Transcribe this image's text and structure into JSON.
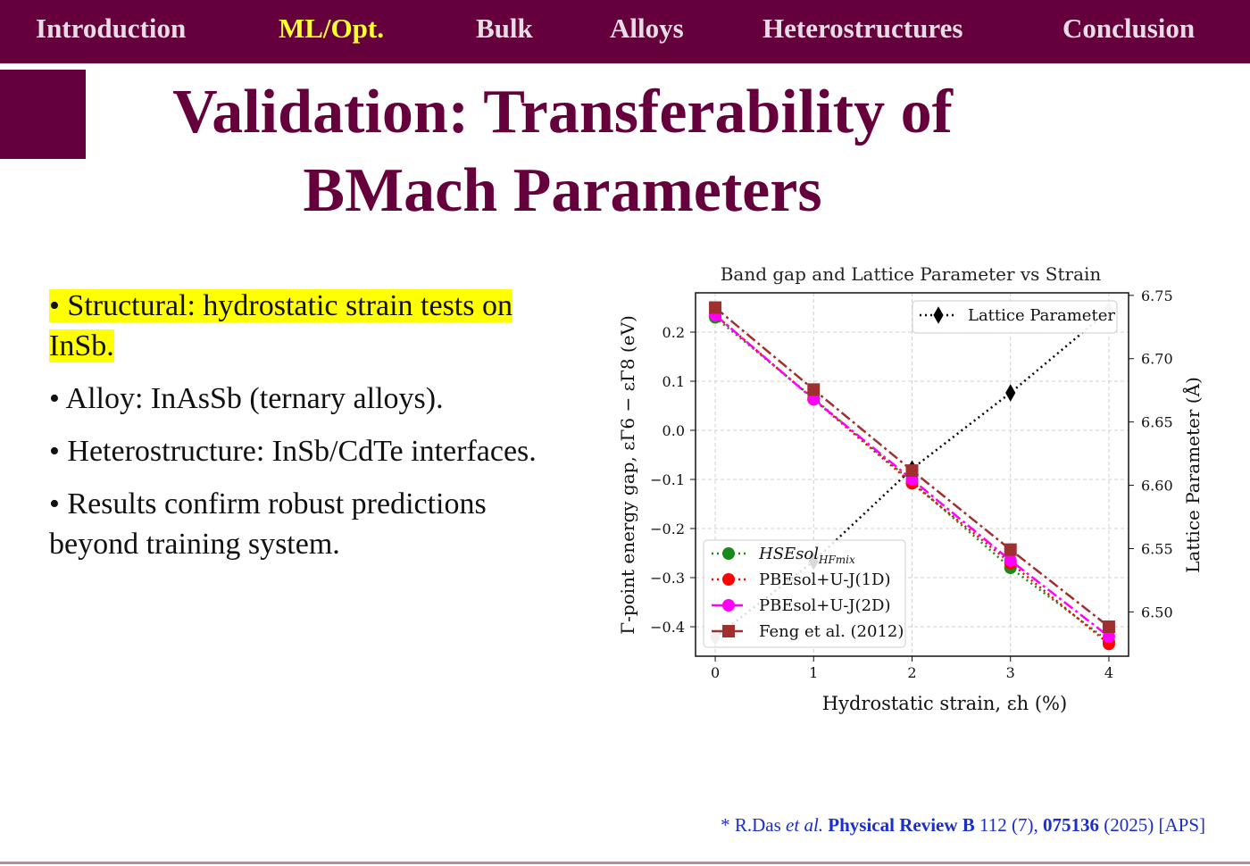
{
  "nav": {
    "items": [
      {
        "label": "Introduction"
      },
      {
        "label": "ML/Opt.",
        "active": true
      },
      {
        "label": "Bulk"
      },
      {
        "label": "Alloys"
      },
      {
        "label": "Heterostructures"
      },
      {
        "label": "Conclusion"
      }
    ]
  },
  "slide": {
    "title_line1": "Validation: Transferability of",
    "title_line2": "BMach Parameters"
  },
  "bullets": [
    {
      "text": "• Structural: hydrostatic strain tests on InSb.",
      "highlighted": true
    },
    {
      "text": "• Alloy: InAsSb (ternary alloys)."
    },
    {
      "text": "• Heterostructure: InSb/CdTe interfaces."
    },
    {
      "text": "• Results confirm robust predictions beyond training system."
    }
  ],
  "citation": {
    "prefix": "* R.Das ",
    "etal": "et al.",
    "journal": "Physical Review B",
    "volume": " 112 (7), ",
    "article": "075136",
    "suffix": " (2025) [APS]"
  },
  "colors": {
    "theme": "#66003c",
    "active_nav": "#ffff33",
    "highlight": "#ffff00",
    "citation_link": "#1a2ecc"
  },
  "chart_data": {
    "type": "line",
    "title": "Band gap and Lattice Parameter vs Strain",
    "xlabel": "Hydrostatic strain, εh (%)",
    "ylabel": "Γ-point energy gap, εΓ6 − εΓ8 (eV)",
    "y2label": "Lattice Parameter (Å)",
    "x": [
      0,
      1,
      2,
      3,
      4
    ],
    "xlim": [
      -0.2,
      4.2
    ],
    "ylim": [
      -0.46,
      0.28
    ],
    "y2lim": [
      6.465,
      6.752
    ],
    "xticks": [
      0,
      1,
      2,
      3,
      4
    ],
    "yticks": [
      0.2,
      0.1,
      0.0,
      -0.1,
      -0.2,
      -0.3,
      -0.4
    ],
    "ytick_labels": [
      "0.2",
      "0.1",
      "0.0",
      "−0.1",
      "−0.2",
      "−0.3",
      "−0.4"
    ],
    "y2ticks": [
      6.75,
      6.7,
      6.65,
      6.6,
      6.55,
      6.5
    ],
    "y2tick_labels": [
      "6.75",
      "6.70",
      "6.65",
      "6.60",
      "6.55",
      "6.50"
    ],
    "grid": true,
    "series": [
      {
        "name": "HSEsol",
        "name_sub": "HFmix",
        "color": "#1a8a1a",
        "dash": "dot",
        "marker": "circle",
        "values": [
          0.23,
          0.065,
          -0.105,
          -0.28,
          -0.43
        ]
      },
      {
        "name": "PBEsol+U-J(1D)",
        "color": "#ff0000",
        "dash": "dot",
        "marker": "circle",
        "values": [
          0.235,
          0.063,
          -0.108,
          -0.27,
          -0.435
        ]
      },
      {
        "name": "PBEsol+U-J(2D)",
        "color": "#ff00ff",
        "dash": "dashdot",
        "marker": "circle",
        "values": [
          0.235,
          0.063,
          -0.1,
          -0.265,
          -0.42
        ]
      },
      {
        "name": "Feng et al. (2012)",
        "color": "#a0302f",
        "dash": "dashdot",
        "marker": "square",
        "values": [
          0.25,
          0.083,
          -0.082,
          -0.243,
          -0.4
        ]
      }
    ],
    "secondary_series": [
      {
        "name": "Lattice Parameter",
        "color": "#000000",
        "dash": "dot",
        "marker": "diamond",
        "values": [
          6.48,
          6.54,
          6.613,
          6.673,
          6.738
        ]
      }
    ],
    "legend_position": "lower-left",
    "legend2_position": "top-right"
  }
}
